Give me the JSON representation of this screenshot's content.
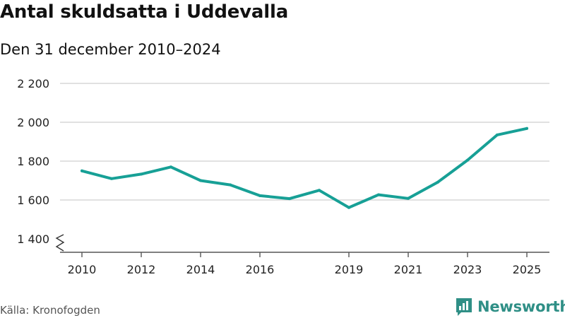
{
  "title": "Antal skuldsatta i Uddevalla",
  "subtitle": "Den 31 december 2010–2024",
  "source": "Källa: Kronofogden",
  "brand": {
    "name": "Newsworthy",
    "icon": "bar-chart-logo-icon",
    "color": "#2f8f86"
  },
  "chart_data": {
    "type": "line",
    "title": "Antal skuldsatta i Uddevalla",
    "subtitle": "Den 31 december 2010–2024",
    "xlabel": "",
    "ylabel": "",
    "x": [
      2010,
      2011,
      2012,
      2013,
      2014,
      2015,
      2016,
      2017,
      2018,
      2019,
      2020,
      2021,
      2022,
      2023,
      2024,
      2025
    ],
    "series": [
      {
        "name": "Antal skuldsatta",
        "color": "#17a096",
        "values": [
          1750,
          1710,
          1733,
          1770,
          1700,
          1678,
          1622,
          1607,
          1650,
          1561,
          1627,
          1608,
          1692,
          1805,
          1935,
          1968
        ]
      }
    ],
    "xticks": [
      2010,
      2012,
      2014,
      2016,
      2019,
      2021,
      2023,
      2025
    ],
    "xtick_labels": [
      "2010",
      "2012",
      "2014",
      "2016",
      "2019",
      "2021",
      "2023",
      "2025"
    ],
    "yticks": [
      1400,
      1600,
      1800,
      2000,
      2200
    ],
    "ytick_labels": [
      "1 400",
      "1 600",
      "1 800",
      "2 000",
      "2 200"
    ],
    "xlim": [
      2010,
      2025
    ],
    "ylim": [
      1400,
      2200
    ],
    "grid": true,
    "axis_break": true
  }
}
